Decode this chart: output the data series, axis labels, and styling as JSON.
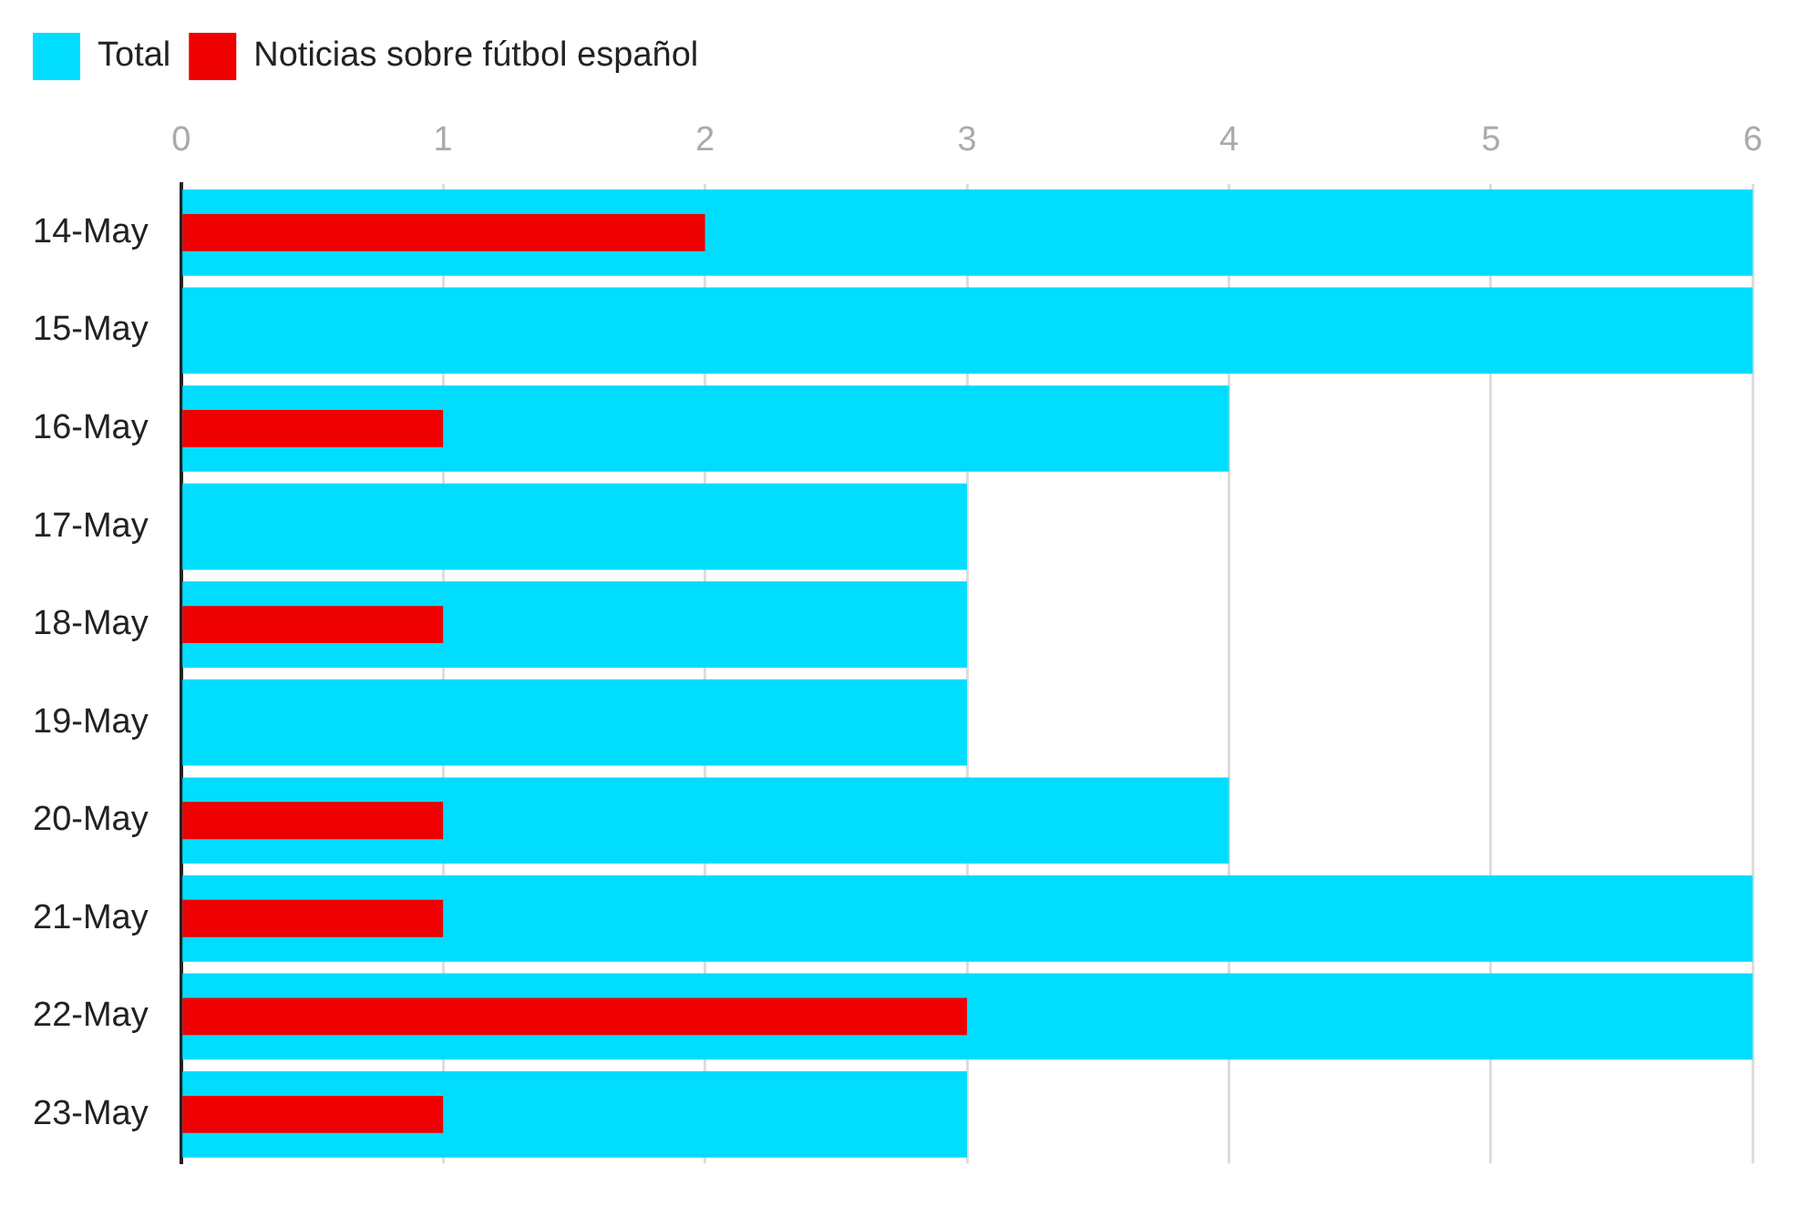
{
  "chart_data": {
    "type": "bar",
    "orientation": "horizontal",
    "categories": [
      "14-May",
      "15-May",
      "16-May",
      "17-May",
      "18-May",
      "19-May",
      "20-May",
      "21-May",
      "22-May",
      "23-May"
    ],
    "series": [
      {
        "name": "Total",
        "color": "#00ddff",
        "values": [
          6,
          6,
          4,
          3,
          3,
          3,
          4,
          6,
          6,
          3
        ]
      },
      {
        "name": "Noticias sobre fútbol español",
        "color": "#ee0000",
        "values": [
          2,
          null,
          1,
          null,
          1,
          null,
          1,
          1,
          3,
          1
        ]
      }
    ],
    "xlim": [
      0,
      6
    ],
    "xticks": [
      0,
      1,
      2,
      3,
      4,
      5,
      6
    ],
    "grid": "x",
    "legend": "top left"
  }
}
